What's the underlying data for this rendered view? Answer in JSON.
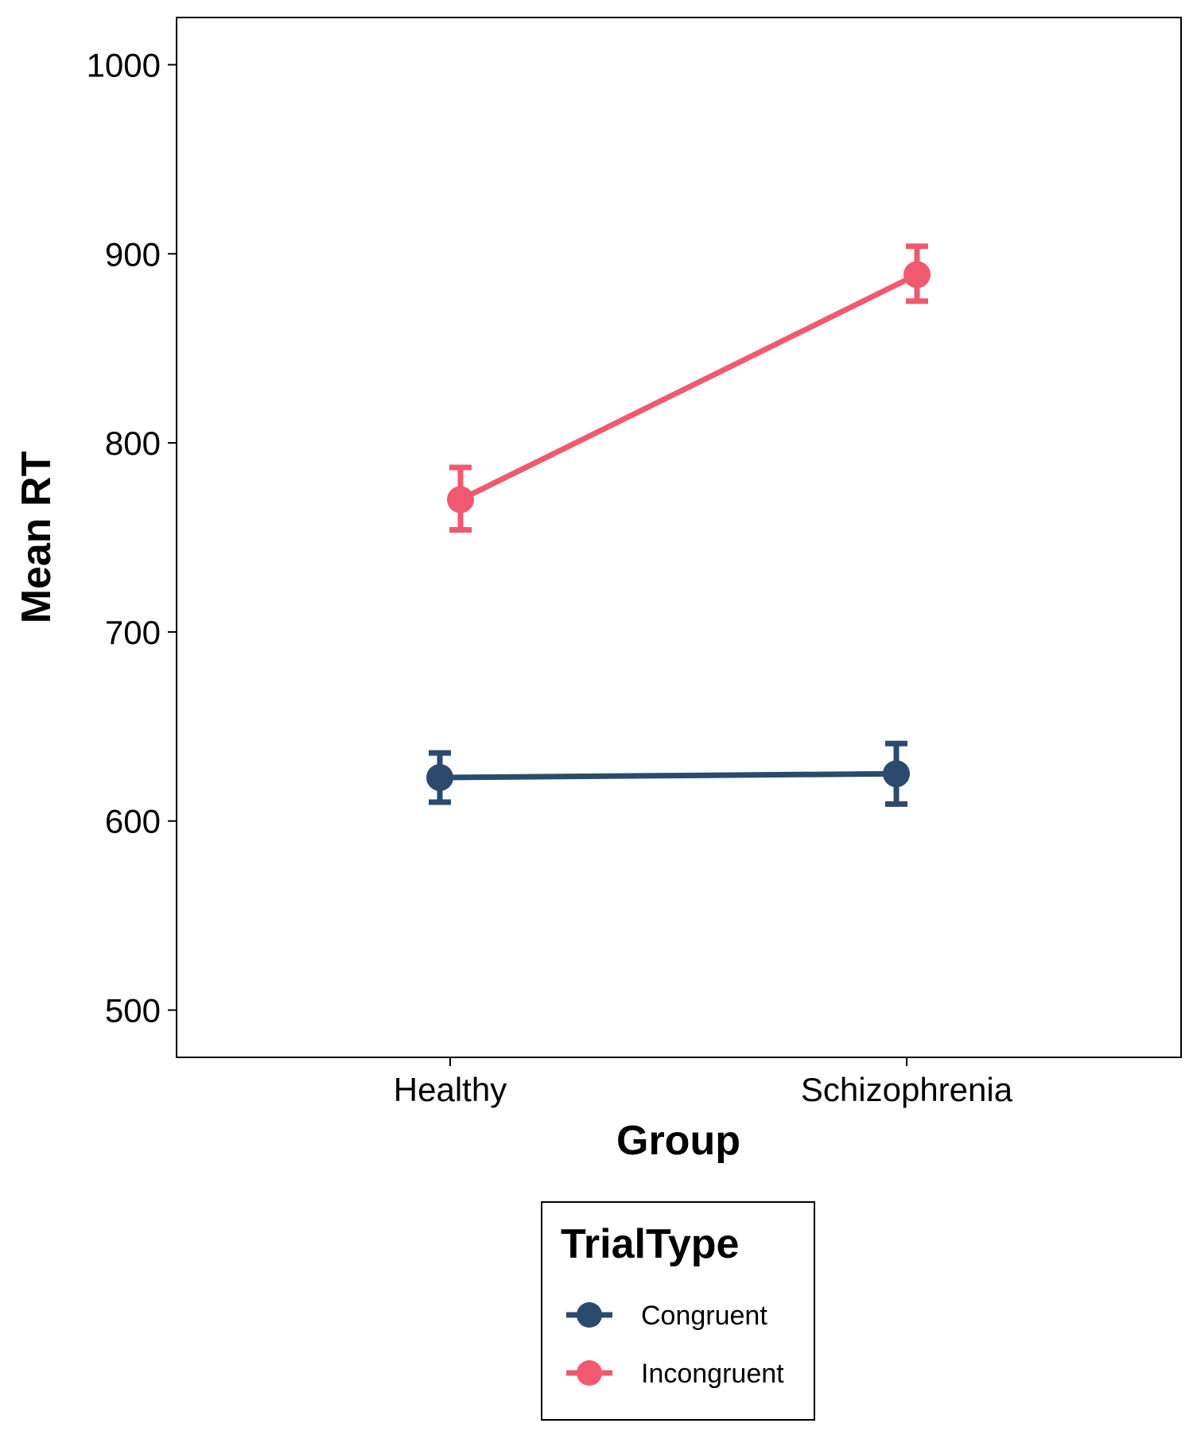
{
  "chart_data": {
    "type": "line",
    "xlabel": "Group",
    "ylabel": "Mean RT",
    "categories": [
      "Healthy",
      "Schizophrenia"
    ],
    "ylim": [
      475,
      1025
    ],
    "yticks": [
      500,
      600,
      700,
      800,
      900,
      1000
    ],
    "grid": false,
    "legend": {
      "title": "TrialType",
      "placement": "bottom"
    },
    "series": [
      {
        "name": "Congruent",
        "color": "#2b4a6e",
        "values": [
          623,
          625
        ],
        "error_low": [
          610,
          609
        ],
        "error_high": [
          636,
          641
        ]
      },
      {
        "name": "Incongruent",
        "color": "#f0596f",
        "values": [
          770,
          889
        ],
        "error_low": [
          754,
          875
        ],
        "error_high": [
          787,
          904
        ]
      }
    ]
  }
}
